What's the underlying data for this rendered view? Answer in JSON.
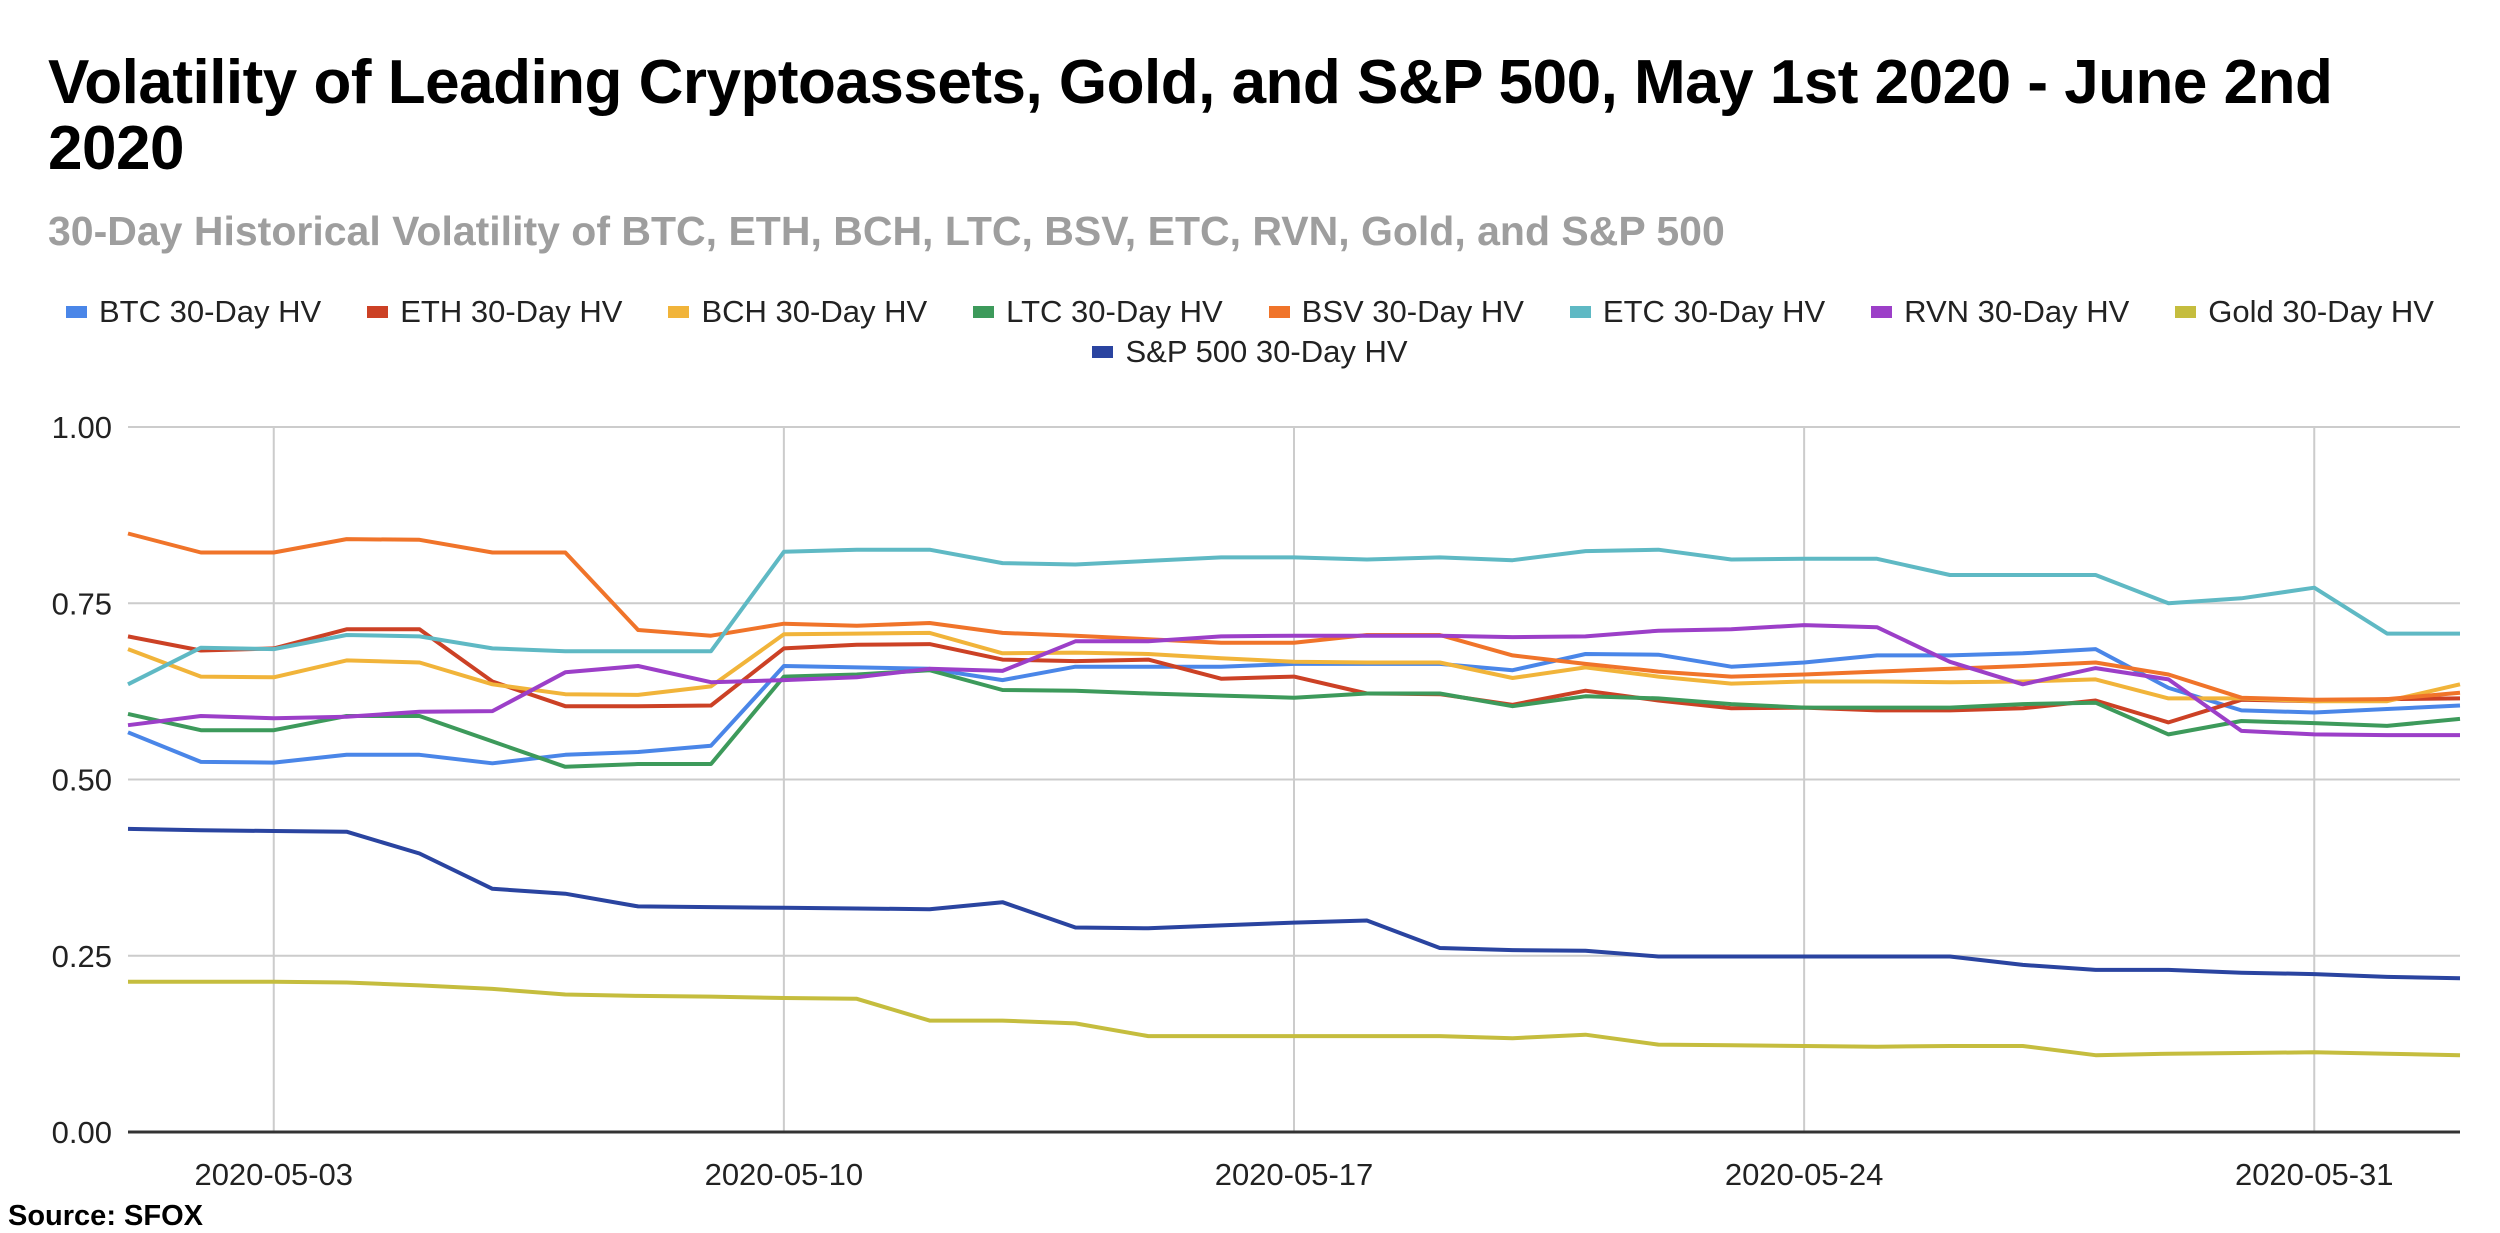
{
  "chart_data": {
    "type": "line",
    "title": "Volatility of Leading Cryptoassets, Gold, and S&P 500, May 1st 2020 - June 2nd 2020",
    "subtitle": "30-Day Historical Volatility of BTC, ETH, BCH, LTC, BSV, ETC, RVN, Gold, and S&P 500",
    "source": "Source: SFOX",
    "xlabel": "",
    "ylabel": "",
    "ylim": [
      0,
      1
    ],
    "yticks": [
      "0.00",
      "0.25",
      "0.50",
      "0.75",
      "1.00"
    ],
    "ytick_values": [
      0,
      0.25,
      0.5,
      0.75,
      1.0
    ],
    "xtick_labels": [
      "2020-05-03",
      "2020-05-10",
      "2020-05-17",
      "2020-05-24",
      "2020-05-31"
    ],
    "xtick_index": [
      2,
      9,
      16,
      23,
      30
    ],
    "grid": true,
    "legend_position": "top",
    "x": [
      "2020-05-01",
      "2020-05-02",
      "2020-05-03",
      "2020-05-04",
      "2020-05-05",
      "2020-05-06",
      "2020-05-07",
      "2020-05-08",
      "2020-05-09",
      "2020-05-10",
      "2020-05-11",
      "2020-05-12",
      "2020-05-13",
      "2020-05-14",
      "2020-05-15",
      "2020-05-16",
      "2020-05-17",
      "2020-05-18",
      "2020-05-19",
      "2020-05-20",
      "2020-05-21",
      "2020-05-22",
      "2020-05-23",
      "2020-05-24",
      "2020-05-25",
      "2020-05-26",
      "2020-05-27",
      "2020-05-28",
      "2020-05-29",
      "2020-05-30",
      "2020-05-31",
      "2020-06-01",
      "2020-06-02"
    ],
    "series": [
      {
        "name": "BTC 30-Day HV",
        "color": "#4a86e8",
        "values": [
          0.567,
          0.525,
          0.524,
          0.535,
          0.535,
          0.523,
          0.535,
          0.539,
          0.548,
          0.661,
          0.659,
          0.657,
          0.641,
          0.66,
          0.66,
          0.66,
          0.664,
          0.664,
          0.664,
          0.655,
          0.678,
          0.677,
          0.66,
          0.666,
          0.676,
          0.676,
          0.679,
          0.685,
          0.63,
          0.598,
          0.595,
          0.6,
          0.605
        ]
      },
      {
        "name": "ETH 30-Day HV",
        "color": "#cc4125",
        "values": [
          0.703,
          0.683,
          0.686,
          0.713,
          0.713,
          0.639,
          0.604,
          0.604,
          0.605,
          0.686,
          0.691,
          0.692,
          0.67,
          0.668,
          0.67,
          0.643,
          0.646,
          0.622,
          0.621,
          0.606,
          0.626,
          0.612,
          0.601,
          0.602,
          0.598,
          0.598,
          0.601,
          0.612,
          0.581,
          0.613,
          0.611,
          0.614,
          0.615
        ]
      },
      {
        "name": "BCH 30-Day HV",
        "color": "#f1b43a",
        "values": [
          0.685,
          0.646,
          0.645,
          0.669,
          0.666,
          0.635,
          0.621,
          0.62,
          0.632,
          0.706,
          0.707,
          0.708,
          0.679,
          0.68,
          0.678,
          0.672,
          0.667,
          0.666,
          0.666,
          0.644,
          0.659,
          0.646,
          0.636,
          0.639,
          0.639,
          0.638,
          0.639,
          0.642,
          0.615,
          0.615,
          0.611,
          0.611,
          0.635
        ]
      },
      {
        "name": "LTC 30-Day HV",
        "color": "#3d9a5b",
        "values": [
          0.593,
          0.57,
          0.57,
          0.59,
          0.59,
          0.554,
          0.518,
          0.522,
          0.522,
          0.646,
          0.649,
          0.655,
          0.627,
          0.626,
          0.622,
          0.619,
          0.616,
          0.622,
          0.622,
          0.604,
          0.618,
          0.615,
          0.607,
          0.602,
          0.602,
          0.602,
          0.607,
          0.609,
          0.564,
          0.583,
          0.58,
          0.576,
          0.586
        ]
      },
      {
        "name": "BSV 30-Day HV",
        "color": "#f0742a",
        "values": [
          0.849,
          0.822,
          0.822,
          0.841,
          0.84,
          0.822,
          0.822,
          0.712,
          0.704,
          0.721,
          0.718,
          0.722,
          0.708,
          0.704,
          0.699,
          0.694,
          0.694,
          0.705,
          0.705,
          0.676,
          0.664,
          0.653,
          0.646,
          0.649,
          0.653,
          0.657,
          0.661,
          0.666,
          0.649,
          0.616,
          0.613,
          0.614,
          0.623
        ]
      },
      {
        "name": "ETC 30-Day HV",
        "color": "#5fb9c4",
        "values": [
          0.635,
          0.687,
          0.685,
          0.705,
          0.703,
          0.686,
          0.682,
          0.682,
          0.682,
          0.823,
          0.826,
          0.826,
          0.807,
          0.805,
          0.81,
          0.815,
          0.815,
          0.812,
          0.815,
          0.811,
          0.824,
          0.826,
          0.812,
          0.813,
          0.813,
          0.79,
          0.79,
          0.79,
          0.75,
          0.757,
          0.772,
          0.707,
          0.707
        ]
      },
      {
        "name": "RVN 30-Day HV",
        "color": "#9c3fc8",
        "values": [
          0.577,
          0.59,
          0.587,
          0.589,
          0.596,
          0.597,
          0.652,
          0.661,
          0.638,
          0.641,
          0.645,
          0.657,
          0.654,
          0.696,
          0.696,
          0.703,
          0.704,
          0.704,
          0.704,
          0.702,
          0.703,
          0.711,
          0.713,
          0.719,
          0.716,
          0.667,
          0.635,
          0.658,
          0.642,
          0.569,
          0.564,
          0.563,
          0.563
        ]
      },
      {
        "name": "Gold 30-Day HV",
        "color": "#c5bd3e",
        "values": [
          0.213,
          0.213,
          0.213,
          0.212,
          0.208,
          0.203,
          0.195,
          0.193,
          0.192,
          0.19,
          0.189,
          0.158,
          0.158,
          0.154,
          0.136,
          0.136,
          0.136,
          0.136,
          0.136,
          0.133,
          0.138,
          0.124,
          0.123,
          0.122,
          0.121,
          0.122,
          0.122,
          0.109,
          0.111,
          0.112,
          0.113,
          0.111,
          0.109
        ]
      },
      {
        "name": "S&P 500 30-Day HV",
        "color": "#2a44a0",
        "values": [
          0.43,
          0.428,
          0.427,
          0.426,
          0.395,
          0.345,
          0.338,
          0.32,
          0.319,
          0.318,
          0.317,
          0.316,
          0.326,
          0.29,
          0.289,
          0.293,
          0.297,
          0.3,
          0.261,
          0.258,
          0.257,
          0.249,
          0.249,
          0.249,
          0.249,
          0.249,
          0.237,
          0.23,
          0.23,
          0.226,
          0.224,
          0.22,
          0.218
        ]
      }
    ]
  }
}
